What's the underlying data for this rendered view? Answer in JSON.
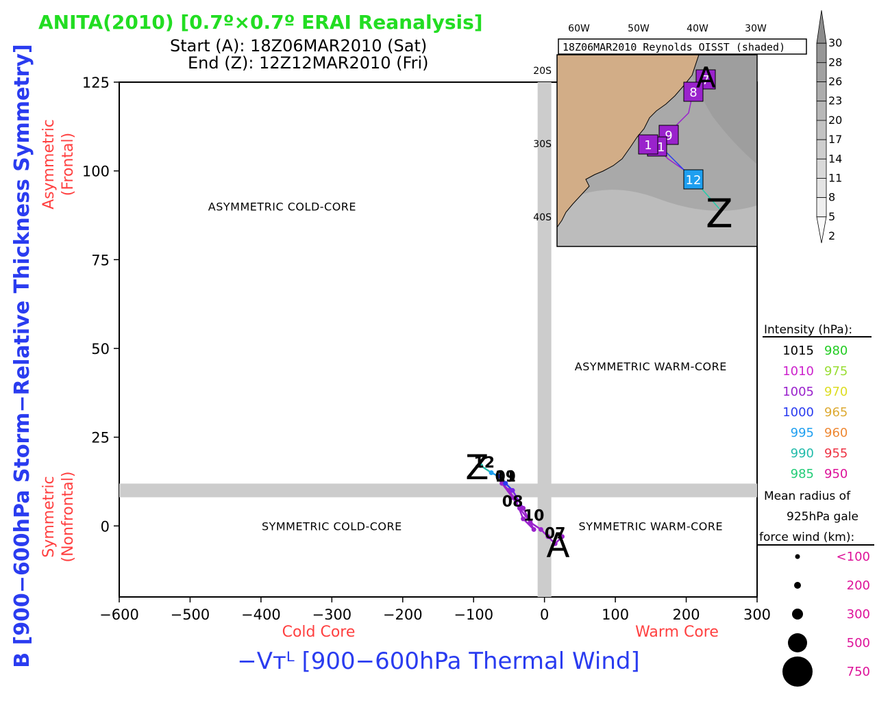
{
  "title": "ANITA(2010) [0.7º×0.7º ERAI Reanalysis]",
  "start_line": "Start (A): 18Z06MAR2010 (Sat)",
  "end_line": "End (Z): 12Z12MAR2010 (Fri)",
  "colors": {
    "title": "#22dd22",
    "axis_blue": "#2a3cf0",
    "red_label": "#ff4040",
    "grey_band": "#cccccc"
  },
  "chart_data": {
    "type": "line",
    "title": "ANITA(2010) [0.7º×0.7º ERAI Reanalysis]",
    "xlabel": "−Vᴛᴸ [900−600hPa Thermal Wind]",
    "ylabel": "B [900−600hPa Storm−Relative Thickness Symmetry]",
    "xlim": [
      -600,
      300
    ],
    "ylim": [
      -20,
      125
    ],
    "x_ticks": [
      -600,
      -500,
      -400,
      -300,
      -200,
      -100,
      0,
      100,
      200,
      300
    ],
    "x_tick_labels": [
      "−600",
      "−500",
      "−400",
      "−300",
      "−200",
      "−100",
      "0",
      "100",
      "200",
      "300"
    ],
    "y_ticks": [
      0,
      25,
      50,
      75,
      100,
      125
    ],
    "y_tick_labels": [
      "0",
      "25",
      "50",
      "75",
      "100",
      "125"
    ],
    "threshold_x": 0,
    "threshold_y": 10,
    "x_side_labels": [
      "Cold Core",
      "Warm Core"
    ],
    "y_side_labels": [
      {
        "line1": "Symmetric",
        "line2": "(Nonfrontal)"
      },
      {
        "line1": "Asymmetric",
        "line2": "(Frontal)"
      }
    ],
    "regions": [
      {
        "label": "ASYMMETRIC COLD-CORE",
        "x": -370,
        "y": 90
      },
      {
        "label": "ASYMMETRIC WARM-CORE",
        "x": 150,
        "y": 45
      },
      {
        "label": "SYMMETRIC COLD-CORE",
        "x": -300,
        "y": 0
      },
      {
        "label": "SYMMETRIC WARM-CORE",
        "x": 150,
        "y": 0
      }
    ],
    "track": [
      {
        "x": 25,
        "y": -3,
        "color": "#9a22cc"
      },
      {
        "x": 15,
        "y": -5,
        "color": "#9a22cc"
      },
      {
        "x": 5,
        "y": -3,
        "color": "#9a22cc"
      },
      {
        "x": -5,
        "y": -1,
        "color": "#9a22cc"
      },
      {
        "x": -20,
        "y": 1,
        "color": "#9a22cc"
      },
      {
        "x": -35,
        "y": 5,
        "color": "#9a22cc"
      },
      {
        "x": -45,
        "y": 8,
        "color": "#9a22cc"
      },
      {
        "x": -60,
        "y": 12,
        "color": "#9a22cc"
      },
      {
        "x": -50,
        "y": 10,
        "color": "#9a22cc"
      },
      {
        "x": -40,
        "y": 7,
        "color": "#9a22cc"
      },
      {
        "x": -30,
        "y": 2,
        "color": "#9a22cc"
      },
      {
        "x": -15,
        "y": -1,
        "color": "#9a22cc"
      },
      {
        "x": -30,
        "y": 5,
        "color": "#9a22cc"
      },
      {
        "x": -45,
        "y": 10,
        "color": "#7a22e8"
      },
      {
        "x": -55,
        "y": 12,
        "color": "#2a3cf0"
      },
      {
        "x": -65,
        "y": 14,
        "color": "#2a3cf0"
      },
      {
        "x": -75,
        "y": 15,
        "color": "#1e9ff0"
      },
      {
        "x": -90,
        "y": 17,
        "color": "#22bbaa"
      }
    ],
    "day_labels": [
      {
        "text": "07",
        "x": 15,
        "y": -2
      },
      {
        "text": "08",
        "x": -45,
        "y": 7
      },
      {
        "text": "09",
        "x": -55,
        "y": 14
      },
      {
        "text": "10",
        "x": -15,
        "y": 3
      },
      {
        "text": "11",
        "x": -55,
        "y": 14
      },
      {
        "text": "12",
        "x": -85,
        "y": 18
      }
    ],
    "start_marker": {
      "text": "A",
      "x": 25,
      "y": -3
    },
    "end_marker": {
      "text": "Z",
      "x": -95,
      "y": 17
    }
  },
  "map": {
    "title": "18Z06MAR2010 Reynolds OISST (shaded)",
    "lon_labels": [
      "60W",
      "50W",
      "40W",
      "30W"
    ],
    "lat_labels": [
      "20S",
      "30S",
      "40S"
    ],
    "positions": [
      {
        "label": "7",
        "color": "#9a22cc"
      },
      {
        "label": "8",
        "color": "#9a22cc"
      },
      {
        "label": "9",
        "color": "#9a22cc"
      },
      {
        "label": "11",
        "color": "#9a22cc"
      },
      {
        "label": "1",
        "color": "#9a22cc"
      },
      {
        "label": "12",
        "color": "#1e9ff0"
      }
    ],
    "start_marker": "A",
    "end_marker": "Z",
    "colorbar_levels": [
      "30",
      "28",
      "26",
      "23",
      "20",
      "17",
      "14",
      "11",
      "8",
      "5",
      "2"
    ]
  },
  "legend": {
    "intensity_title": "Intensity (hPa):",
    "intensity_rows": [
      {
        "left": "1015",
        "left_color": "#000000",
        "right": "980",
        "right_color": "#22cc22"
      },
      {
        "left": "1010",
        "left_color": "#cc22cc",
        "right": "975",
        "right_color": "#99dd33"
      },
      {
        "left": "1005",
        "left_color": "#9a22cc",
        "right": "970",
        "right_color": "#dddd22"
      },
      {
        "left": "1000",
        "left_color": "#2a3cf0",
        "right": "965",
        "right_color": "#ddaa33"
      },
      {
        "left": "995",
        "left_color": "#1e9ff0",
        "right": "960",
        "right_color": "#ee8833"
      },
      {
        "left": "990",
        "left_color": "#22bbaa",
        "right": "955",
        "right_color": "#ee3344"
      },
      {
        "left": "985",
        "left_color": "#22cc77",
        "right": "950",
        "right_color": "#dd1199"
      }
    ],
    "radius_title_1": "Mean radius of",
    "radius_title_2": "925hPa gale",
    "radius_title_3": "force wind (km):",
    "radius_items": [
      "<100",
      "200",
      "300",
      "500",
      "750"
    ],
    "radius_color": "#dd1199"
  }
}
